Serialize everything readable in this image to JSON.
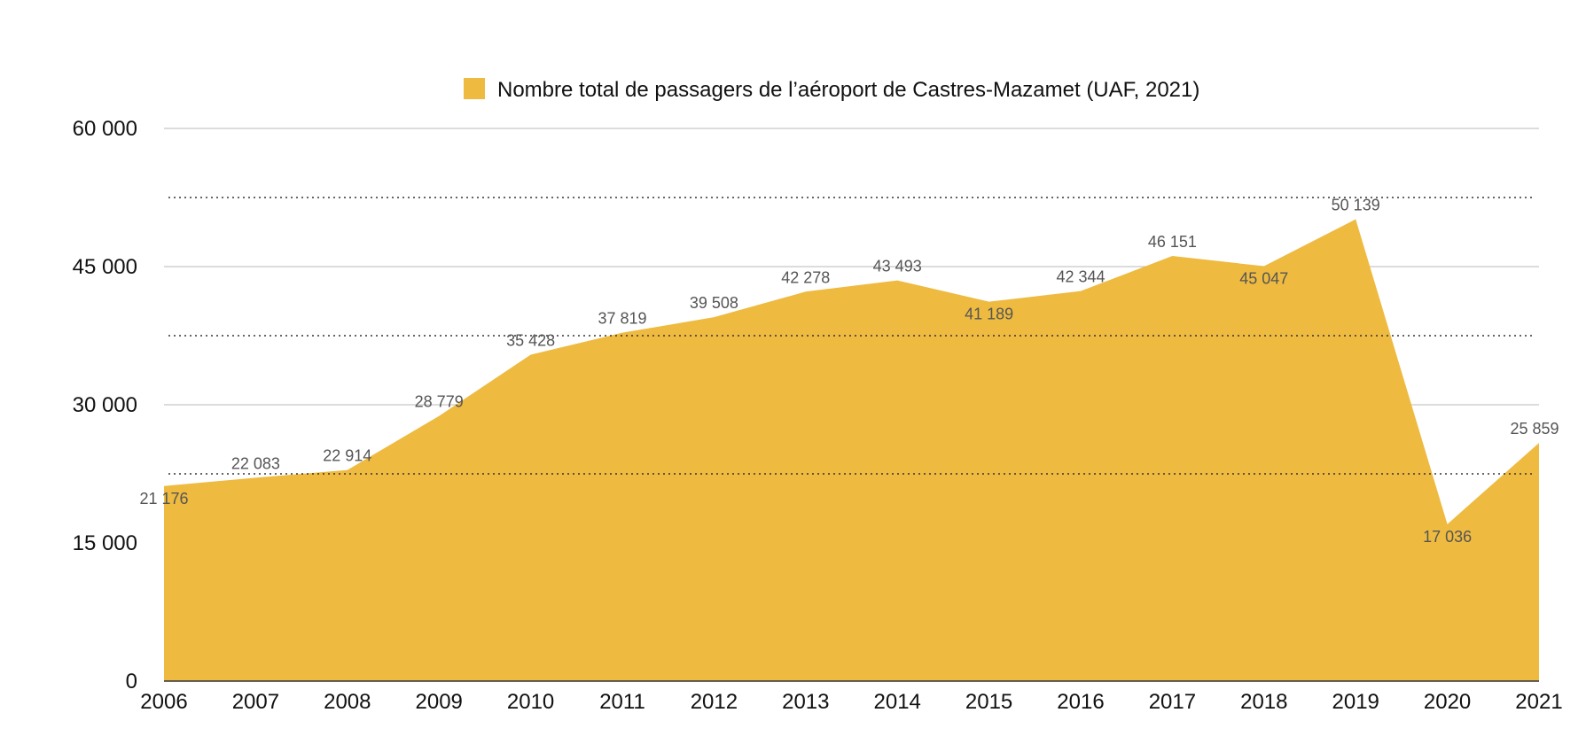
{
  "chart_data": {
    "type": "area",
    "title": "",
    "legend": {
      "label": "Nombre total de passagers de l’aéroport de Castres-Mazamet (UAF, 2021)",
      "position": "top-center"
    },
    "categories": [
      "2006",
      "2007",
      "2008",
      "2009",
      "2010",
      "2011",
      "2012",
      "2013",
      "2014",
      "2015",
      "2016",
      "2017",
      "2018",
      "2019",
      "2020",
      "2021"
    ],
    "series": [
      {
        "name": "Nombre total de passagers de l’aéroport de Castres-Mazamet (UAF, 2021)",
        "values": [
          21176,
          22083,
          22914,
          28779,
          35428,
          37819,
          39508,
          42278,
          43493,
          41189,
          42344,
          46151,
          45047,
          50139,
          17036,
          25859
        ],
        "labels": [
          "21 176",
          "22 083",
          "22 914",
          "28 779",
          "35 428",
          "37 819",
          "39 508",
          "42 278",
          "43 493",
          "41 189",
          "42 344",
          "46 151",
          "45 047",
          "50 139",
          "17 036",
          "25 859"
        ]
      }
    ],
    "ylim": [
      0,
      60000
    ],
    "yticks": [
      0,
      15000,
      30000,
      45000,
      60000
    ],
    "ytick_labels": [
      "0",
      "15 000",
      "30 000",
      "45 000",
      "60 000"
    ],
    "minor_dotted_lines": [
      22500,
      37500,
      52500
    ],
    "xlabel": "",
    "ylabel": "",
    "grid": true,
    "colors": {
      "area": "#EEBA40",
      "grid": "#c8c8c8",
      "dotted": "#333333",
      "label": "#555555"
    }
  }
}
